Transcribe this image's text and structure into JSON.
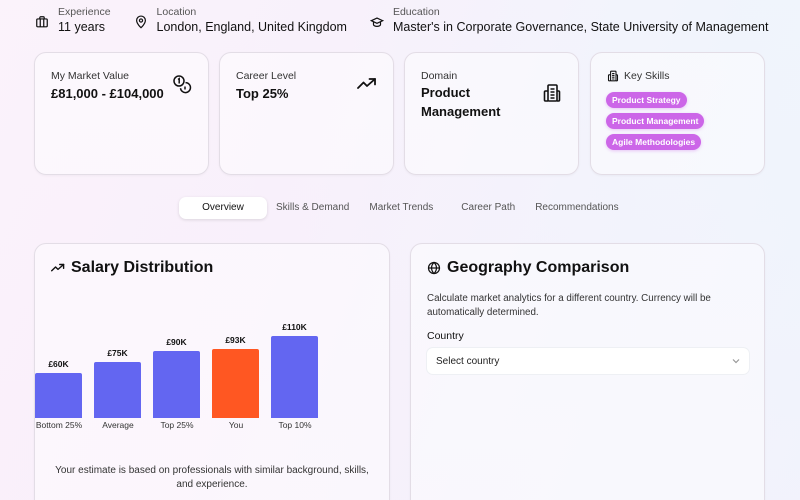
{
  "profile": {
    "experience": {
      "label": "Experience",
      "value": "11 years",
      "icon": "briefcase-icon"
    },
    "location": {
      "label": "Location",
      "value": "London, England, United Kingdom",
      "icon": "map-pin-icon"
    },
    "education": {
      "label": "Education",
      "value": "Master's in Corporate Governance, State University of Management",
      "icon": "graduation-cap-icon"
    }
  },
  "stats": {
    "market_value": {
      "label": "My Market Value",
      "value": "£81,000 - £104,000",
      "icon": "coins-icon"
    },
    "career_level": {
      "label": "Career Level",
      "value": "Top 25%",
      "icon": "trending-up-icon"
    },
    "domain": {
      "label": "Domain",
      "value": "Product Management",
      "icon": "building-icon"
    },
    "key_skills": {
      "label": "Key Skills",
      "icon": "building-icon",
      "items": [
        "Product Strategy",
        "Product Management",
        "Agile Methodologies"
      ],
      "chip_color": "#cc66e8"
    }
  },
  "tabs": [
    {
      "label": "Overview",
      "active": true
    },
    {
      "label": "Skills & Demand",
      "active": false
    },
    {
      "label": "Market Trends",
      "active": false
    },
    {
      "label": "Career Path",
      "active": false
    },
    {
      "label": "Recommendations",
      "active": false
    }
  ],
  "salary_panel": {
    "title": "Salary Distribution",
    "icon": "trending-up-icon",
    "note": "Your estimate is based on professionals with similar background, skills, and experience."
  },
  "geo_panel": {
    "title": "Geography Comparison",
    "icon": "globe-icon",
    "description": "Calculate market analytics for a different country. Currency will be automatically determined.",
    "country_label": "Country",
    "country_placeholder": "Select country"
  },
  "chart_data": {
    "type": "bar",
    "title": "Salary Distribution",
    "categories": [
      "Bottom 25%",
      "Average",
      "Top 25%",
      "You",
      "Top 10%"
    ],
    "values": [
      60,
      75,
      90,
      93,
      110
    ],
    "value_labels": [
      "£60K",
      "£75K",
      "£90K",
      "£93K",
      "£110K"
    ],
    "unit": "£K",
    "colors": [
      "#6366f1",
      "#6366f1",
      "#6366f1",
      "#ff5722",
      "#6366f1"
    ],
    "highlight": "You",
    "xlabel": "",
    "ylabel": "",
    "ylim": [
      0,
      110
    ],
    "grid": false,
    "legend": "none"
  }
}
